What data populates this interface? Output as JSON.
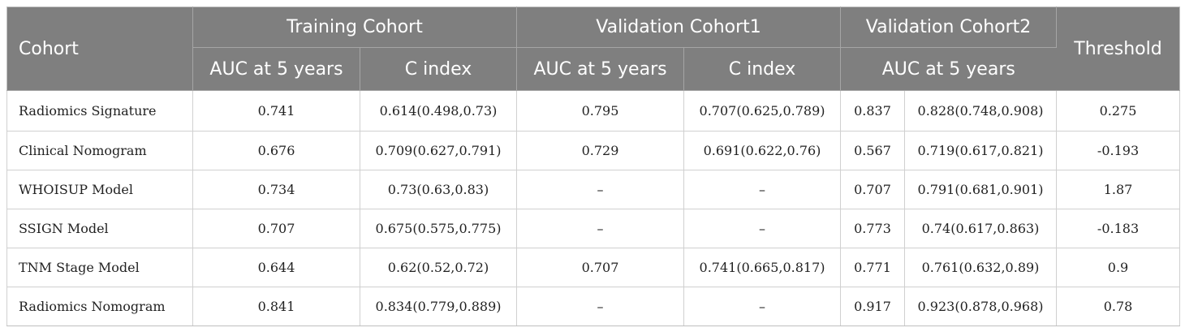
{
  "header": {
    "cohort": "Cohort",
    "groups": {
      "training": "Training Cohort",
      "validation1": "Validation Cohort1",
      "validation2": "Validation Cohort2",
      "threshold": "Threshold"
    },
    "sub": {
      "training_auc": "AUC at 5 years",
      "training_cindex": "C index",
      "validation1_auc": "AUC at 5 years",
      "validation1_cindex": "C index",
      "validation2_auc": "AUC at 5 years"
    }
  },
  "rows": [
    {
      "cohort": "Radiomics Signature",
      "t_auc": "0.741",
      "t_c": "0.614(0.498,0.73)",
      "v1_auc": "0.795",
      "v1_c": "0.707(0.625,0.789)",
      "v2_a": "0.837",
      "v2_b": "0.828(0.748,0.908)",
      "threshold": "0.275"
    },
    {
      "cohort": "Clinical Nomogram",
      "t_auc": "0.676",
      "t_c": "0.709(0.627,0.791)",
      "v1_auc": "0.729",
      "v1_c": "0.691(0.622,0.76)",
      "v2_a": "0.567",
      "v2_b": "0.719(0.617,0.821)",
      "threshold": "-0.193"
    },
    {
      "cohort": "WHOISUP Model",
      "t_auc": "0.734",
      "t_c": "0.73(0.63,0.83)",
      "v1_auc": "–",
      "v1_c": "–",
      "v2_a": "0.707",
      "v2_b": "0.791(0.681,0.901)",
      "threshold": "1.87"
    },
    {
      "cohort": "SSIGN Model",
      "t_auc": "0.707",
      "t_c": "0.675(0.575,0.775)",
      "v1_auc": "–",
      "v1_c": "–",
      "v2_a": "0.773",
      "v2_b": "0.74(0.617,0.863)",
      "threshold": "-0.183"
    },
    {
      "cohort": "TNM Stage Model",
      "t_auc": "0.644",
      "t_c": "0.62(0.52,0.72)",
      "v1_auc": "0.707",
      "v1_c": "0.741(0.665,0.817)",
      "v2_a": "0.771",
      "v2_b": "0.761(0.632,0.89)",
      "threshold": "0.9"
    },
    {
      "cohort": "Radiomics Nomogram",
      "t_auc": "0.841",
      "t_c": "0.834(0.779,0.889)",
      "v1_auc": "–",
      "v1_c": "–",
      "v2_a": "0.917",
      "v2_b": "0.923(0.878,0.968)",
      "threshold": "0.78"
    }
  ]
}
